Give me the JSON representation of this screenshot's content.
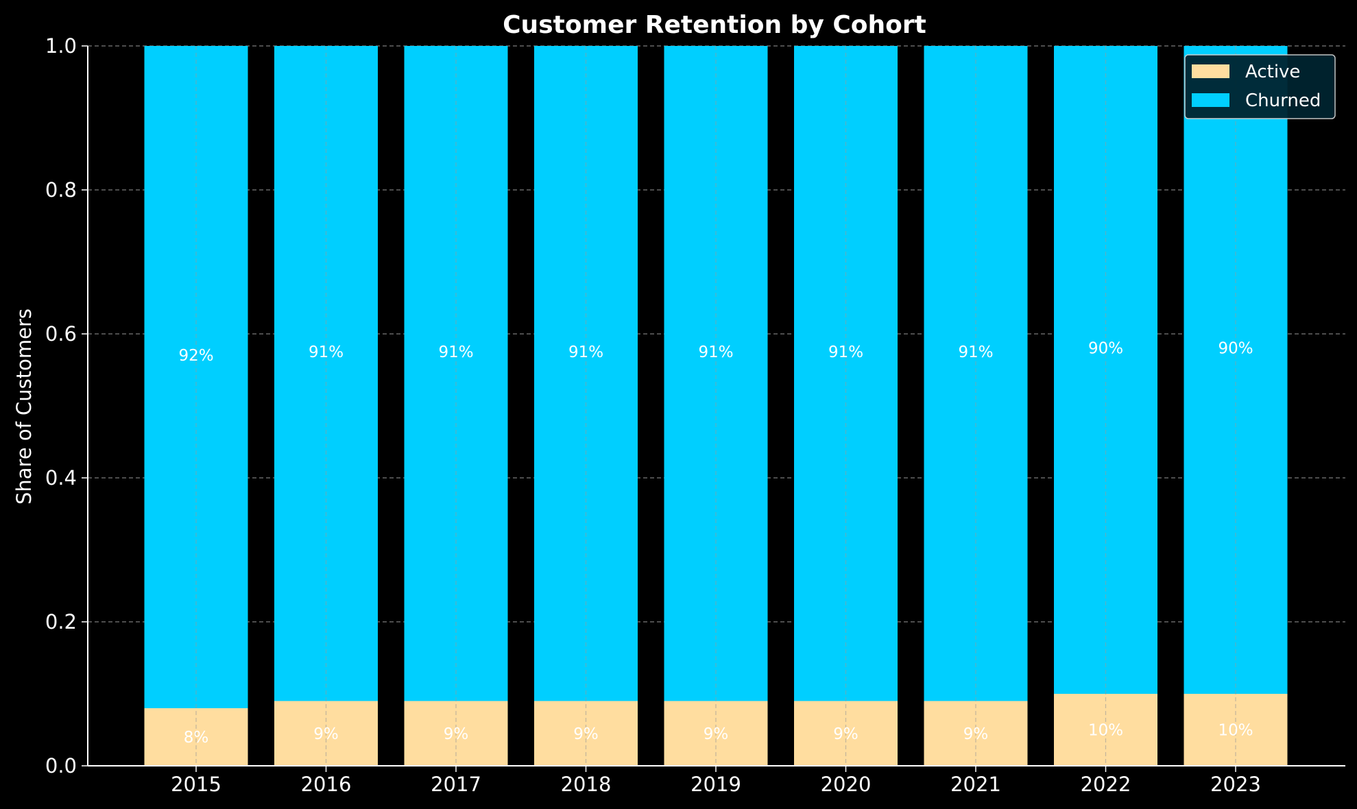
{
  "chart_data": {
    "type": "bar",
    "stacked": true,
    "title": "Customer Retention by Cohort",
    "xlabel": "",
    "ylabel": "Share of Customers",
    "ylim": [
      0,
      1.0
    ],
    "yticks": [
      "0.0",
      "0.2",
      "0.4",
      "0.6",
      "0.8",
      "1.0"
    ],
    "categories": [
      "2015",
      "2016",
      "2017",
      "2018",
      "2019",
      "2020",
      "2021",
      "2022",
      "2023"
    ],
    "series": [
      {
        "name": "Active",
        "color": "#ffdd9f",
        "values": [
          0.08,
          0.09,
          0.09,
          0.09,
          0.09,
          0.09,
          0.09,
          0.1,
          0.1
        ],
        "labels": [
          "8%",
          "9%",
          "9%",
          "9%",
          "9%",
          "9%",
          "9%",
          "10%",
          "10%"
        ]
      },
      {
        "name": "Churned",
        "color": "#00cfff",
        "values": [
          0.92,
          0.91,
          0.91,
          0.91,
          0.91,
          0.91,
          0.91,
          0.9,
          0.9
        ],
        "labels": [
          "92%",
          "91%",
          "91%",
          "91%",
          "91%",
          "91%",
          "91%",
          "90%",
          "90%"
        ]
      }
    ],
    "grid": true,
    "legend_position": "top-right",
    "background": "#000000"
  }
}
